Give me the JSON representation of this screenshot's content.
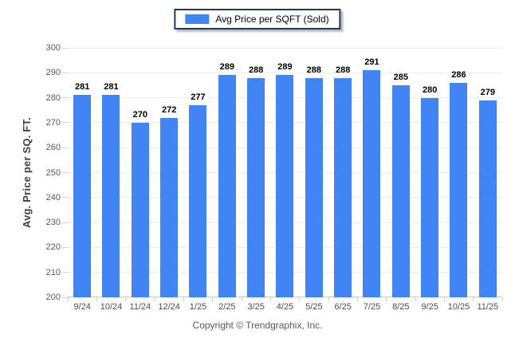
{
  "legend": {
    "swatch_icon": "bar-series-swatch"
  },
  "footer": {
    "copyright": "Copyright © Trendgraphix, Inc."
  },
  "colors": {
    "bar": "#4184f3",
    "legend_border": "#1f3864",
    "gridline": "#ececec",
    "baseline": "#c9c9c9"
  },
  "chart_data": {
    "type": "bar",
    "title": "Avg Price per SQFT (Sold)",
    "categories": [
      "9/24",
      "10/24",
      "11/24",
      "12/24",
      "1/25",
      "2/25",
      "3/25",
      "4/25",
      "5/25",
      "6/25",
      "7/25",
      "8/25",
      "9/25",
      "10/25",
      "11/25"
    ],
    "values": [
      281,
      281,
      270,
      272,
      277,
      289,
      288,
      289,
      288,
      288,
      291,
      285,
      280,
      286,
      279
    ],
    "xlabel": "",
    "ylabel": "Avg. Price per SQ. FT.",
    "ylim": [
      200,
      300
    ],
    "ytick_step": 10,
    "grid": true,
    "value_labels": true,
    "legend_position": "top-center",
    "bar_color": "#4184f3"
  }
}
